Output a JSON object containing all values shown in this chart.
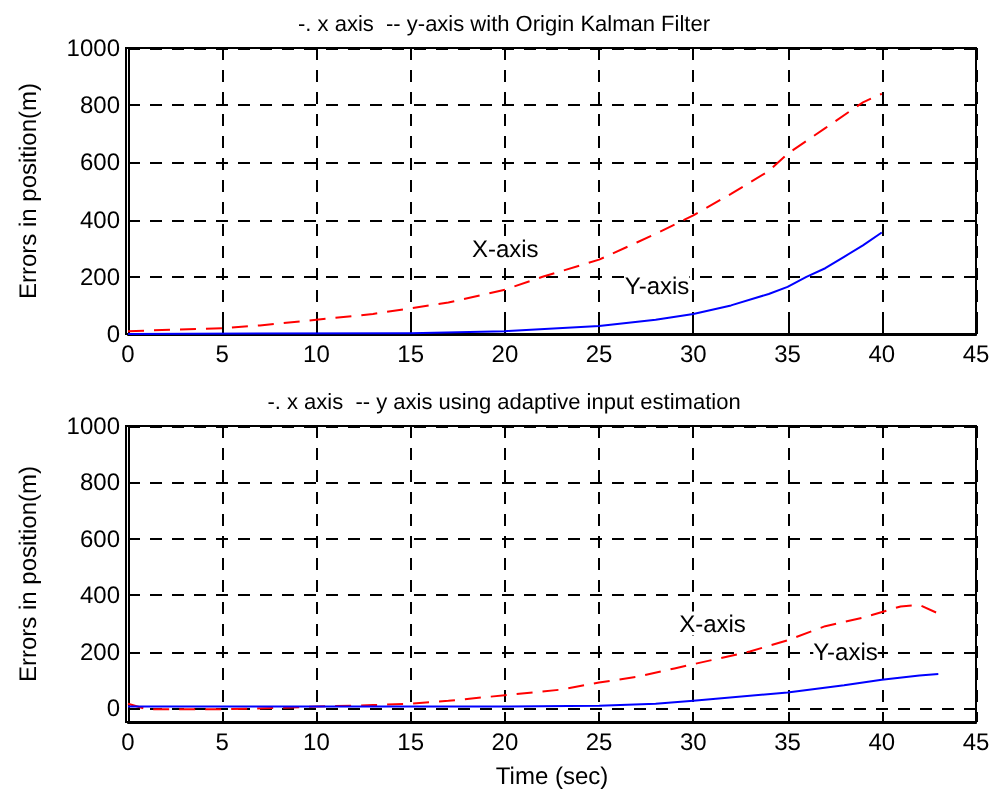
{
  "chart_data": [
    {
      "type": "line",
      "title": "-. x axis  -- y-axis with Origin Kalman Filter",
      "ylabel": "Errors in position(m)",
      "xlim": [
        0,
        45
      ],
      "xticks": [
        0,
        5,
        10,
        15,
        20,
        25,
        30,
        35,
        40,
        45
      ],
      "ylim": [
        0,
        1000
      ],
      "yticks": [
        0,
        200,
        400,
        600,
        800,
        1000
      ],
      "grid": true,
      "series": [
        {
          "color": "#ff0000",
          "line_style": "dashed",
          "x": [
            0,
            5,
            7,
            10,
            13,
            15,
            17,
            20,
            22,
            25,
            27,
            28,
            30,
            32,
            34,
            35,
            37,
            39,
            40
          ],
          "values": [
            10,
            20,
            30,
            50,
            70,
            90,
            110,
            155,
            200,
            260,
            320,
            350,
            415,
            490,
            570,
            630,
            720,
            810,
            840
          ]
        },
        {
          "color": "#0000ff",
          "line_style": "solid",
          "x": [
            0,
            15,
            20,
            25,
            28,
            30,
            32,
            34,
            35,
            36,
            37,
            38,
            39,
            40
          ],
          "values": [
            0,
            3,
            10,
            28,
            50,
            70,
            100,
            140,
            165,
            200,
            230,
            270,
            310,
            355
          ]
        }
      ],
      "annotations": [
        "X-axis",
        "Y-axis"
      ]
    },
    {
      "type": "line",
      "title": "-. x axis  -- y axis using adaptive input estimation",
      "xlabel": "Time (sec)",
      "ylabel": "Errors in position(m)",
      "xlim": [
        0,
        45
      ],
      "xticks": [
        0,
        5,
        10,
        15,
        20,
        25,
        30,
        35,
        40,
        45
      ],
      "ylim": [
        -50,
        1000
      ],
      "yticks": [
        0,
        200,
        400,
        600,
        800,
        1000
      ],
      "grid": true,
      "series": [
        {
          "color": "#ff0000",
          "line_style": "dashed",
          "x": [
            0,
            0.5,
            1,
            5,
            8,
            10,
            13,
            15,
            17,
            20,
            23,
            25,
            27,
            29,
            31,
            33,
            35,
            37,
            39,
            41,
            42,
            43
          ],
          "values": [
            15,
            5,
            -5,
            -5,
            0,
            5,
            10,
            15,
            25,
            45,
            65,
            90,
            110,
            140,
            170,
            200,
            240,
            290,
            320,
            360,
            365,
            335
          ]
        },
        {
          "color": "#0000ff",
          "line_style": "solid",
          "x": [
            0,
            20,
            25,
            28,
            30,
            35,
            38,
            40,
            42,
            43
          ],
          "values": [
            5,
            5,
            8,
            15,
            25,
            55,
            80,
            100,
            115,
            120
          ]
        }
      ],
      "annotations": [
        "X-axis",
        "Y-axis"
      ]
    }
  ]
}
